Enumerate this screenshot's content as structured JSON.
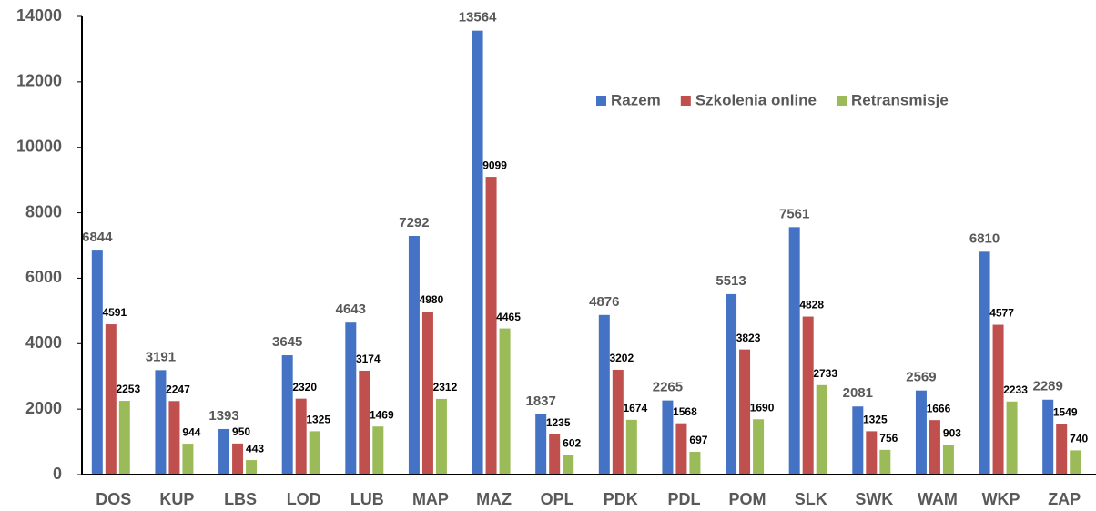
{
  "chart_data": {
    "type": "bar",
    "categories": [
      "DOS",
      "KUP",
      "LBS",
      "LOD",
      "LUB",
      "MAP",
      "MAZ",
      "OPL",
      "PDK",
      "PDL",
      "POM",
      "SLK",
      "SWK",
      "WAM",
      "WKP",
      "ZAP"
    ],
    "series": [
      {
        "name": "Razem",
        "color": "#4472c4",
        "values": [
          6844,
          3191,
          1393,
          3645,
          4643,
          7292,
          13564,
          1837,
          4876,
          2265,
          5513,
          7561,
          2081,
          2569,
          6810,
          2289
        ]
      },
      {
        "name": "Szkolenia online",
        "color": "#c0504d",
        "values": [
          4591,
          2247,
          950,
          2320,
          3174,
          4980,
          9099,
          1235,
          3202,
          1568,
          3823,
          4828,
          1325,
          1666,
          4577,
          1549
        ]
      },
      {
        "name": "Retransmisje",
        "color": "#9bbb59",
        "values": [
          2253,
          944,
          443,
          1325,
          1469,
          2312,
          4465,
          602,
          1674,
          697,
          1690,
          2733,
          756,
          903,
          2233,
          740
        ]
      }
    ],
    "ylim": [
      0,
      14000
    ],
    "yticks": [
      0,
      2000,
      4000,
      6000,
      8000,
      10000,
      12000,
      14000
    ]
  }
}
